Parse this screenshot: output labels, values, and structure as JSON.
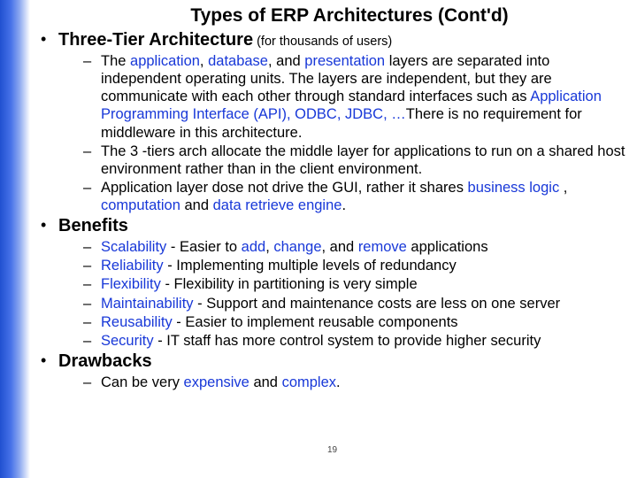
{
  "colors": {
    "highlight": "#1838d8",
    "text": "#000000",
    "background": "#ffffff",
    "gradient_from": "#2050d0",
    "gradient_to": "#ffffff"
  },
  "title": "Types of ERP Architectures (Cont'd)",
  "page_number": "19",
  "sections": [
    {
      "heading": "Three-Tier Architecture",
      "heading_suffix": " (for thousands of users)",
      "items": [
        {
          "runs": [
            {
              "t": "The "
            },
            {
              "t": "application",
              "hl": true
            },
            {
              "t": ", "
            },
            {
              "t": "database",
              "hl": true
            },
            {
              "t": ", and "
            },
            {
              "t": "presentation",
              "hl": true
            },
            {
              "t": " layers are separated into independent operating units. The layers are independent, but  they are communicate with each other through standard interfaces  such as "
            },
            {
              "t": "Application Programming Interface (API), ODBC, JDBC, …",
              "hl": true
            },
            {
              "t": "There is no requirement for middleware in this architecture."
            }
          ]
        },
        {
          "runs": [
            {
              "t": "The  3 -tiers arch allocate the middle layer  for applications to run on a shared host environment rather than in the client environment."
            }
          ]
        },
        {
          "runs": [
            {
              "t": "Application layer dose not drive the GUI, rather it shares "
            },
            {
              "t": "business logic",
              "hl": true
            },
            {
              "t": " , "
            },
            {
              "t": "computation",
              "hl": true
            },
            {
              "t": " and "
            },
            {
              "t": "data retrieve engine",
              "hl": true
            },
            {
              "t": "."
            }
          ]
        }
      ]
    },
    {
      "heading": "Benefits",
      "items": [
        {
          "runs": [
            {
              "t": "Scalability",
              "hl": true
            },
            {
              "t": " - Easier to "
            },
            {
              "t": "add",
              "hl": true
            },
            {
              "t": ", "
            },
            {
              "t": "change",
              "hl": true
            },
            {
              "t": ", and "
            },
            {
              "t": "remove",
              "hl": true
            },
            {
              "t": " applications"
            }
          ]
        },
        {
          "runs": [
            {
              "t": "Reliability",
              "hl": true
            },
            {
              "t": " - Implementing multiple levels of redundancy"
            }
          ]
        },
        {
          "runs": [
            {
              "t": "Flexibility",
              "hl": true
            },
            {
              "t": " - Flexibility in partitioning is very simple"
            }
          ]
        },
        {
          "runs": [
            {
              "t": "Maintainability",
              "hl": true
            },
            {
              "t": " - Support and maintenance costs are less on one server"
            }
          ]
        },
        {
          "runs": [
            {
              "t": "Reusability",
              "hl": true
            },
            {
              "t": " - Easier to implement reusable components"
            }
          ]
        },
        {
          "runs": [
            {
              "t": "Security",
              "hl": true
            },
            {
              "t": " - IT staff has more control system to provide higher security"
            }
          ]
        }
      ]
    },
    {
      "heading": "Drawbacks",
      "items": [
        {
          "runs": [
            {
              "t": "Can be very "
            },
            {
              "t": "expensive",
              "hl": true
            },
            {
              "t": " and "
            },
            {
              "t": "complex",
              "hl": true
            },
            {
              "t": "."
            }
          ]
        }
      ]
    }
  ]
}
